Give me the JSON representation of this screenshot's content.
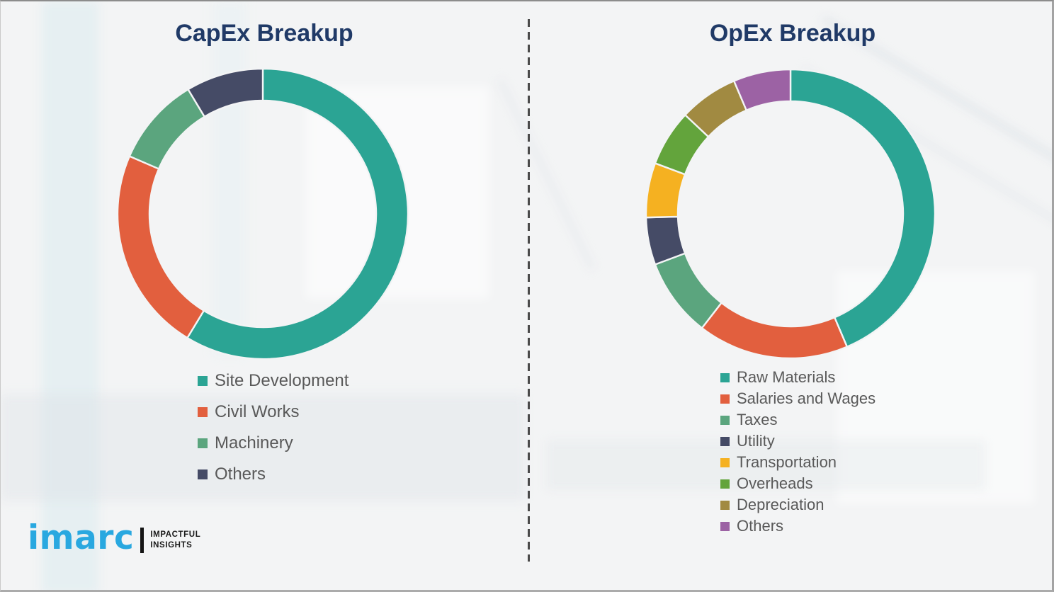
{
  "charts": [
    {
      "title": "CapEx Breakup",
      "segments": [
        {
          "label": "Site Development",
          "value": 58.7,
          "color": "#2ba494"
        },
        {
          "label": "Civil Works",
          "value": 22.8,
          "color": "#e25f3e"
        },
        {
          "label": "Machinery",
          "value": 9.9,
          "color": "#5ba57e"
        },
        {
          "label": "Others",
          "value": 8.6,
          "color": "#454b66"
        }
      ]
    },
    {
      "title": "OpEx Breakup",
      "segments": [
        {
          "label": "Raw Materials",
          "value": 43.6,
          "color": "#2ba494"
        },
        {
          "label": "Salaries and Wages",
          "value": 16.9,
          "color": "#e25f3e"
        },
        {
          "label": "Taxes",
          "value": 8.8,
          "color": "#5ba57e"
        },
        {
          "label": "Utility",
          "value": 5.3,
          "color": "#454b66"
        },
        {
          "label": "Transportation",
          "value": 6.1,
          "color": "#f5b121"
        },
        {
          "label": "Overheads",
          "value": 6.3,
          "color": "#63a43c"
        },
        {
          "label": "Depreciation",
          "value": 6.6,
          "color": "#a18a41"
        },
        {
          "label": "Others",
          "value": 6.4,
          "color": "#9c62a4"
        }
      ]
    }
  ],
  "logo": {
    "brand": "imarc",
    "tagline_line1": "IMPACTFUL",
    "tagline_line2": "INSIGHTS"
  },
  "style_colors": {
    "title_text": "#203a67",
    "legend_text": "#595959",
    "logo_blue": "#29a8e0",
    "background": "#f3f4f5",
    "divider_dash": "#4a4a4a"
  },
  "chart_data": [
    {
      "type": "pie",
      "subtype": "donut",
      "title": "CapEx Breakup",
      "labels": [
        "Site Development",
        "Civil Works",
        "Machinery",
        "Others"
      ],
      "values": [
        58.7,
        22.8,
        9.9,
        8.6
      ],
      "unit": "percent",
      "values_are_estimates": true,
      "colors": [
        "#2ba494",
        "#e25f3e",
        "#5ba57e",
        "#454b66"
      ],
      "start_angle_deg": 0,
      "direction": "clockwise",
      "legend_position": "bottom-left",
      "data_labels": false
    },
    {
      "type": "pie",
      "subtype": "donut",
      "title": "OpEx Breakup",
      "labels": [
        "Raw Materials",
        "Salaries and Wages",
        "Taxes",
        "Utility",
        "Transportation",
        "Overheads",
        "Depreciation",
        "Others"
      ],
      "values": [
        43.6,
        16.9,
        8.8,
        5.3,
        6.1,
        6.3,
        6.6,
        6.4
      ],
      "unit": "percent",
      "values_are_estimates": true,
      "colors": [
        "#2ba494",
        "#e25f3e",
        "#5ba57e",
        "#454b66",
        "#f5b121",
        "#63a43c",
        "#a18a41",
        "#9c62a4"
      ],
      "start_angle_deg": 0,
      "direction": "clockwise",
      "legend_position": "bottom-left",
      "data_labels": false
    }
  ]
}
